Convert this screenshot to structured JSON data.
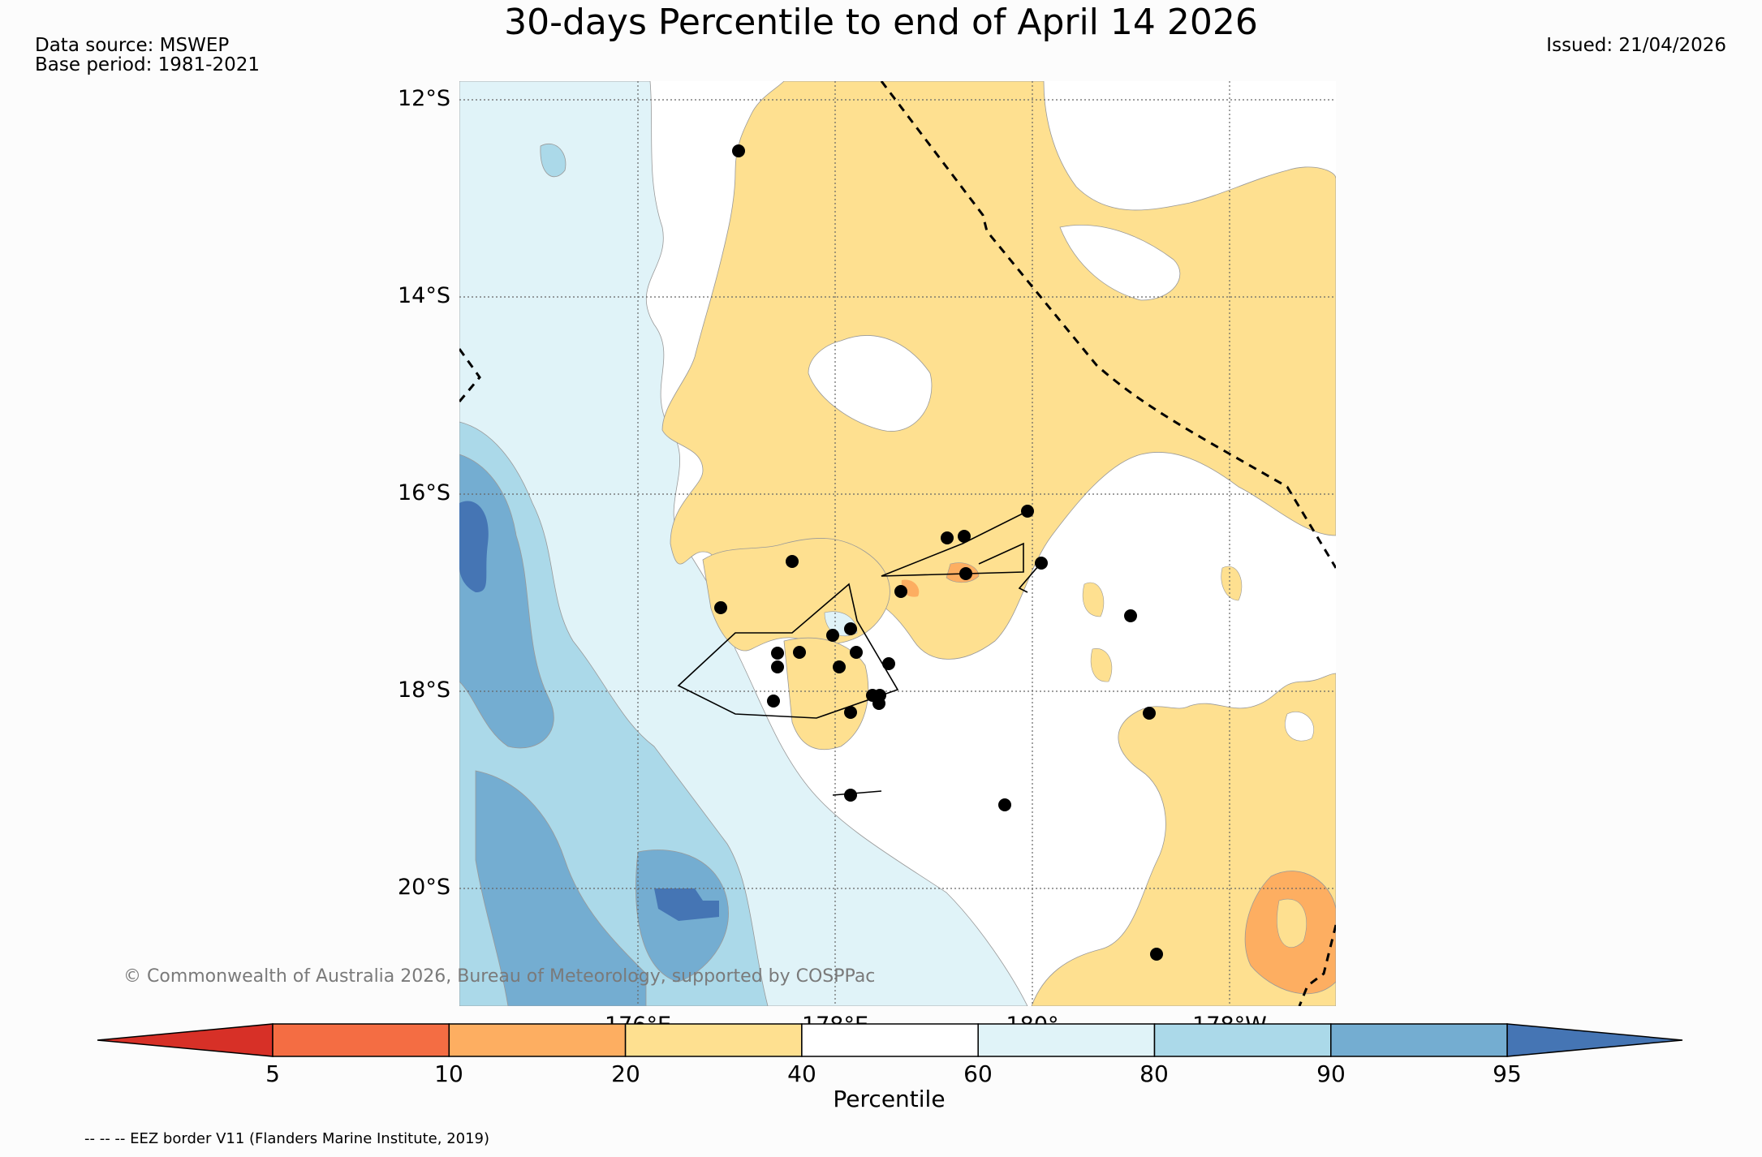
{
  "title": "30-days Percentile to end of April 14 2026",
  "data_source": "Data source: MSWEP",
  "base_period": "Base period: 1981-2021",
  "issued": "Issued: 21/04/2026",
  "map": {
    "lat_labels": [
      "12°S",
      "14°S",
      "16°S",
      "18°S",
      "20°S"
    ],
    "lon_labels": [
      "176°E",
      "178°E",
      "180°",
      "178°W"
    ],
    "copyright": "© Commonwealth of Australia 2026, Bureau of Meteorology, supported by COSPPac"
  },
  "colorbar": {
    "label": "Percentile",
    "ticks": [
      "5",
      "10",
      "20",
      "40",
      "60",
      "80",
      "90",
      "95"
    ],
    "colors": [
      "#d73027",
      "#f46d43",
      "#fdae61",
      "#fee090",
      "#ffffff",
      "#e0f3f8",
      "#abd9e9",
      "#74add1",
      "#4575b4"
    ]
  },
  "legend": {
    "eez": "-- -- -- EEZ border V11 (Flanders Marine Institute, 2019)"
  }
}
